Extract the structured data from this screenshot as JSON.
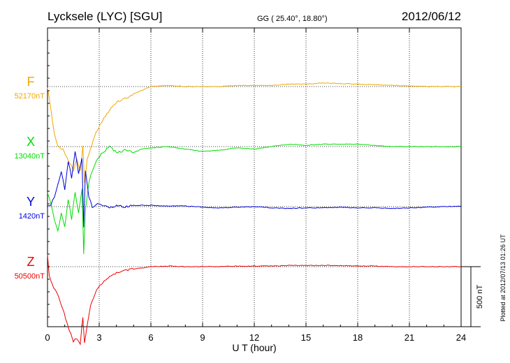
{
  "header": {
    "title": "Lycksele (LYC)  [SGU]",
    "coords": "GG ( 25.40°,  18.80°)",
    "date": "2012/06/12"
  },
  "footer_note": "Plotted at 2012/07/13 01:26 UT",
  "scale_bar_label": "500 nT",
  "chart_data": {
    "type": "line",
    "xlabel": "U T (hour)",
    "xlim": [
      0,
      24
    ],
    "xticks": [
      0,
      3,
      6,
      9,
      12,
      15,
      18,
      21,
      24
    ],
    "grid": true,
    "units": "nT",
    "series": [
      {
        "name": "F",
        "baseline_label": "52170nT",
        "baseline": 52170,
        "color": "#f0a800",
        "x": [
          0.0,
          0.2,
          0.4,
          0.6,
          0.9,
          1.2,
          1.5,
          1.7,
          1.9,
          2.05,
          2.15,
          2.3,
          2.5,
          2.8,
          3.2,
          3.6,
          4.0,
          4.5,
          5.0,
          5.5,
          6.0,
          7.0,
          8.0,
          9.0,
          10.0,
          11.0,
          12.0,
          13.0,
          14.0,
          15.0,
          16.0,
          17.0,
          18.0,
          19.0,
          20.0,
          21.0,
          22.0,
          23.0,
          24.0
        ],
        "values": [
          52170,
          51970,
          51780,
          51670,
          51650,
          51560,
          51470,
          51570,
          51460,
          51670,
          51360,
          51560,
          51650,
          51780,
          51890,
          51970,
          52040,
          52070,
          52110,
          52140,
          52170,
          52180,
          52170,
          52170,
          52170,
          52180,
          52180,
          52180,
          52190,
          52190,
          52200,
          52195,
          52190,
          52185,
          52180,
          52175,
          52170,
          52170,
          52170
        ]
      },
      {
        "name": "X",
        "baseline_label": "13040nT",
        "baseline": 13040,
        "color": "#00dd00",
        "x": [
          0.0,
          0.2,
          0.4,
          0.6,
          0.8,
          1.0,
          1.2,
          1.4,
          1.6,
          1.8,
          2.0,
          2.1,
          2.2,
          2.4,
          2.6,
          2.9,
          3.2,
          3.6,
          4.0,
          4.5,
          5.0,
          5.5,
          6.0,
          7.0,
          8.0,
          9.0,
          10.0,
          11.0,
          12.0,
          13.0,
          14.0,
          15.0,
          16.0,
          17.0,
          18.0,
          19.0,
          20.0,
          21.0,
          22.0,
          23.0,
          24.0
        ],
        "values": [
          12660,
          12560,
          12430,
          12340,
          12480,
          12370,
          12600,
          12440,
          12660,
          12480,
          12690,
          12150,
          12510,
          12740,
          12840,
          12940,
          12990,
          13040,
          12990,
          13010,
          12990,
          13020,
          13030,
          13040,
          13020,
          13000,
          13010,
          13030,
          13020,
          13040,
          13060,
          13050,
          13060,
          13060,
          13060,
          13050,
          13040,
          13040,
          13040,
          13040,
          13040
        ]
      },
      {
        "name": "Y",
        "baseline_label": "1420nT",
        "baseline": 1420,
        "color": "#0000dd",
        "x": [
          0.0,
          0.2,
          0.4,
          0.6,
          0.8,
          1.0,
          1.2,
          1.4,
          1.6,
          1.8,
          2.0,
          2.1,
          2.2,
          2.4,
          2.6,
          2.9,
          3.2,
          3.6,
          4.0,
          4.5,
          5.0,
          6.0,
          7.0,
          8.0,
          9.0,
          10.0,
          11.0,
          12.0,
          13.0,
          14.0,
          15.0,
          16.0,
          17.0,
          18.0,
          19.0,
          20.0,
          21.0,
          22.0,
          23.0,
          24.0
        ],
        "values": [
          1420,
          1440,
          1500,
          1600,
          1720,
          1560,
          1800,
          1660,
          1880,
          1700,
          1830,
          1250,
          1720,
          1500,
          1420,
          1450,
          1430,
          1410,
          1425,
          1420,
          1430,
          1430,
          1425,
          1425,
          1415,
          1410,
          1415,
          1420,
          1410,
          1405,
          1410,
          1410,
          1415,
          1410,
          1410,
          1405,
          1410,
          1415,
          1420,
          1425
        ]
      },
      {
        "name": "Z",
        "baseline_label": "50500nT",
        "baseline": 50500,
        "color": "#ee0000",
        "x": [
          0.0,
          0.1,
          0.3,
          0.6,
          0.9,
          1.2,
          1.5,
          1.7,
          1.9,
          2.05,
          2.15,
          2.3,
          2.5,
          2.8,
          3.2,
          3.6,
          4.0,
          4.5,
          5.0,
          5.5,
          6.0,
          7.0,
          8.0,
          9.0,
          10.0,
          11.0,
          12.0,
          13.0,
          14.0,
          15.0,
          16.0,
          17.0,
          18.0,
          19.0,
          20.0,
          21.0,
          22.0,
          23.0,
          24.0
        ],
        "values": [
          50600,
          50430,
          50340,
          50260,
          50140,
          50000,
          49880,
          49900,
          49860,
          50080,
          49870,
          50000,
          50180,
          50290,
          50370,
          50420,
          50450,
          50470,
          50480,
          50490,
          50500,
          50505,
          50500,
          50500,
          50500,
          50505,
          50505,
          50505,
          50510,
          50510,
          50510,
          50510,
          50505,
          50505,
          50500,
          50500,
          50500,
          50500,
          50500
        ]
      }
    ]
  }
}
